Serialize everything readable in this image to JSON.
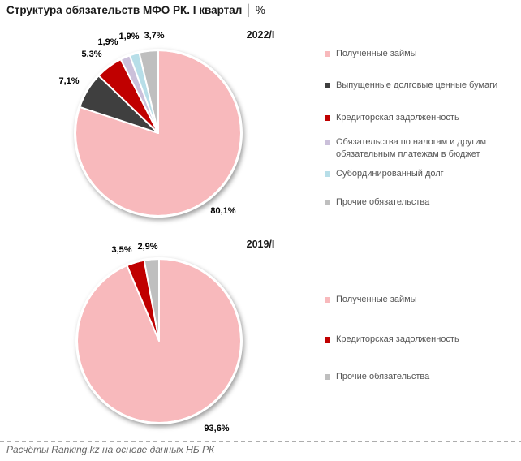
{
  "header": {
    "title": "Структура обязательств МФО РК. I квартал",
    "divider": "│",
    "unit": "%"
  },
  "footer": {
    "source": "Расчёты Ranking.kz на основе данных НБ РК"
  },
  "colors": {
    "received_loans_pink": "#F8B9BC",
    "debt_securities_dark": "#3F3F3F",
    "payables_red": "#C00000",
    "tax_obligations_lavender": "#CBC0DA",
    "subordinated_debt_lightblue": "#B7DEE8",
    "other_liabilities_gray": "#BFBFBF",
    "shadow": "rgba(0,0,0,0.38)"
  },
  "chart_data": [
    {
      "type": "pie",
      "title": "2022/I",
      "legend_position": "right",
      "labels_position": "outside",
      "start_angle": 0,
      "direction": "clockwise",
      "slices": [
        {
          "label": "Полученные займы",
          "value": 80.1,
          "display": "80,1%",
          "color": "#F8B9BC"
        },
        {
          "label": "Выпущенные долговые ценные бумаги",
          "value": 7.1,
          "display": "7,1%",
          "color": "#3F3F3F"
        },
        {
          "label": "Кредиторская задолженность",
          "value": 5.3,
          "display": "5,3%",
          "color": "#C00000"
        },
        {
          "label": "Обязательства по налогам и другим обязательным платежам в бюджет",
          "value": 1.9,
          "display": "1,9%",
          "color": "#CBC0DA"
        },
        {
          "label": "Субординированный долг",
          "value": 1.9,
          "display": "1,9%",
          "color": "#B7DEE8"
        },
        {
          "label": "Прочие обязательства",
          "value": 3.7,
          "display": "3,7%",
          "color": "#BFBFBF"
        }
      ]
    },
    {
      "type": "pie",
      "title": "2019/I",
      "legend_position": "right",
      "labels_position": "outside",
      "start_angle": 0,
      "direction": "clockwise",
      "slices": [
        {
          "label": "Полученные займы",
          "value": 93.6,
          "display": "93,6%",
          "color": "#F8B9BC"
        },
        {
          "label": "Кредиторская задолженность",
          "value": 3.5,
          "display": "3,5%",
          "color": "#C00000"
        },
        {
          "label": "Прочие обязательства",
          "value": 2.9,
          "display": "2,9%",
          "color": "#BFBFBF"
        }
      ]
    }
  ]
}
